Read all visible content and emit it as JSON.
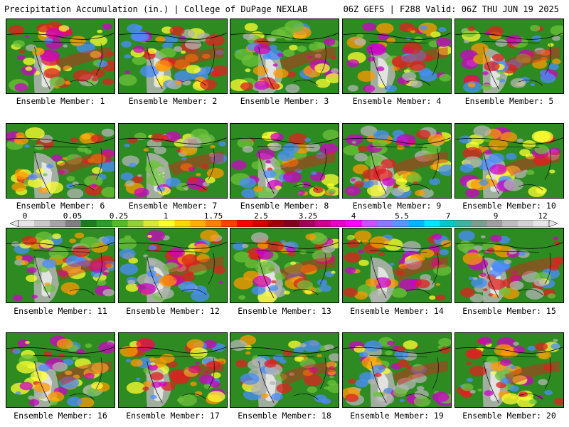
{
  "header": {
    "left_title": "Precipitation Accumulation (in.) | College of DuPage NEXLAB",
    "right_title": "06Z GEFS | F288 Valid: 06Z THU JUN 19 2025"
  },
  "members": [
    {
      "label": "Ensemble Member: 1"
    },
    {
      "label": "Ensemble Member: 2"
    },
    {
      "label": "Ensemble Member: 3"
    },
    {
      "label": "Ensemble Member: 4"
    },
    {
      "label": "Ensemble Member: 5"
    },
    {
      "label": "Ensemble Member: 6"
    },
    {
      "label": "Ensemble Member: 7"
    },
    {
      "label": "Ensemble Member: 8"
    },
    {
      "label": "Ensemble Member: 9"
    },
    {
      "label": "Ensemble Member: 10"
    },
    {
      "label": "Ensemble Member: 11"
    },
    {
      "label": "Ensemble Member: 12"
    },
    {
      "label": "Ensemble Member: 13"
    },
    {
      "label": "Ensemble Member: 14"
    },
    {
      "label": "Ensemble Member: 15"
    },
    {
      "label": "Ensemble Member: 16"
    },
    {
      "label": "Ensemble Member: 17"
    },
    {
      "label": "Ensemble Member: 18"
    },
    {
      "label": "Ensemble Member: 19"
    },
    {
      "label": "Ensemble Member: 20"
    }
  ],
  "legend": {
    "tick_labels": [
      "0",
      "0.05",
      "0.25",
      "1",
      "1.75",
      "2.5",
      "3.25",
      "4",
      "5.5",
      "7",
      "9",
      "12"
    ],
    "colors": [
      "#e6e6e6",
      "#c8c8c8",
      "#a5a5a5",
      "#808080",
      "#1e7b1e",
      "#2e9b2e",
      "#56b82b",
      "#8fd13a",
      "#d6e83a",
      "#ffff30",
      "#ffd700",
      "#ffb000",
      "#ff8000",
      "#ff4000",
      "#ff0000",
      "#d40000",
      "#a00000",
      "#800020",
      "#a0005a",
      "#c8008c",
      "#e600c8",
      "#ff00ff",
      "#c850ff",
      "#8c78ff",
      "#5a96ff",
      "#00b4ff",
      "#00e6ff",
      "#00c8c8",
      "#3cb4a0",
      "#78a08c",
      "#a0a0a0",
      "#bebebe",
      "#d2d2d2",
      "#e6e6e6"
    ]
  },
  "map_colors": {
    "land_green": "#2e8b22",
    "light_green": "#6cc23a",
    "yellow": "#ffff30",
    "orange": "#ff9a00",
    "red": "#e02020",
    "magenta": "#d000c8",
    "blue": "#4a8cff",
    "gray": "#b4b4b4",
    "white": "#f0f0f0"
  }
}
